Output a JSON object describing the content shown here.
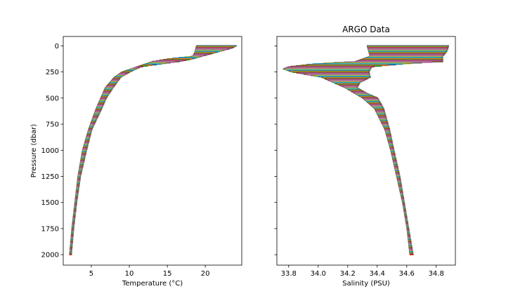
{
  "chart_data": [
    {
      "type": "line",
      "title": "",
      "xlabel": "Temperature (°C)",
      "ylabel": "Pressure (dbar)",
      "xlim": [
        1.3,
        24.8
      ],
      "ylim": [
        2100,
        -90
      ],
      "xticks": [
        5,
        10,
        15,
        20
      ],
      "yticks": [
        0,
        250,
        500,
        750,
        1000,
        1250,
        1500,
        1750,
        2000
      ],
      "grid": false,
      "warm_edge": {
        "pressure": [
          0,
          20,
          60,
          100,
          130,
          150,
          175,
          200,
          250,
          300,
          400,
          500,
          600,
          800,
          1000,
          1250,
          1500,
          1750,
          2000
        ],
        "value": [
          24.0,
          23.5,
          21.5,
          19.5,
          18.0,
          16.5,
          14.0,
          11.5,
          10.0,
          8.8,
          7.8,
          6.9,
          6.3,
          5.0,
          4.3,
          3.5,
          3.0,
          2.6,
          2.3
        ]
      },
      "cool_edge": {
        "pressure": [
          0,
          60,
          100,
          110,
          125,
          150,
          200,
          250,
          300,
          400,
          500,
          600,
          800,
          1000,
          1250,
          1500,
          1750,
          2000
        ],
        "value": [
          18.8,
          18.6,
          18.3,
          17.0,
          15.0,
          13.0,
          11.0,
          9.0,
          8.0,
          6.8,
          6.2,
          5.6,
          4.6,
          3.8,
          3.2,
          2.8,
          2.4,
          2.1
        ]
      }
    },
    {
      "type": "line",
      "title": "ARGO Data",
      "xlabel": "Salinity (PSU)",
      "ylabel": "",
      "xlim": [
        33.72,
        34.93
      ],
      "ylim": [
        2100,
        -90
      ],
      "xticks": [
        33.8,
        34.0,
        34.2,
        34.4,
        34.6,
        34.8
      ],
      "yticks": [
        0,
        250,
        500,
        750,
        1000,
        1250,
        1500,
        1750,
        2000
      ],
      "grid": false,
      "fresh_edge": {
        "pressure": [
          0,
          100,
          150,
          175,
          200,
          220,
          250,
          300,
          350,
          400,
          500,
          600,
          800,
          1000,
          1250,
          1500,
          1750,
          2000
        ],
        "value": [
          34.33,
          34.35,
          34.25,
          33.95,
          33.8,
          33.76,
          33.82,
          34.02,
          34.1,
          34.18,
          34.3,
          34.38,
          34.45,
          34.49,
          34.53,
          34.57,
          34.6,
          34.62
        ]
      },
      "salty_edge": {
        "pressure": [
          0,
          50,
          100,
          150,
          170,
          200,
          250,
          300,
          350,
          400,
          450,
          500,
          600,
          800,
          1000,
          1250,
          1500,
          1750,
          2000
        ],
        "value": [
          34.88,
          34.87,
          34.84,
          34.84,
          34.6,
          34.36,
          34.34,
          34.35,
          34.28,
          34.26,
          34.32,
          34.4,
          34.44,
          34.48,
          34.51,
          34.55,
          34.58,
          34.61,
          34.64
        ]
      }
    }
  ],
  "series_colors": [
    "#1f77b4",
    "#ff7f0e",
    "#2ca02c",
    "#d62728",
    "#9467bd",
    "#8c564b",
    "#e377c2",
    "#7f7f7f",
    "#bcbd22",
    "#17becf"
  ]
}
